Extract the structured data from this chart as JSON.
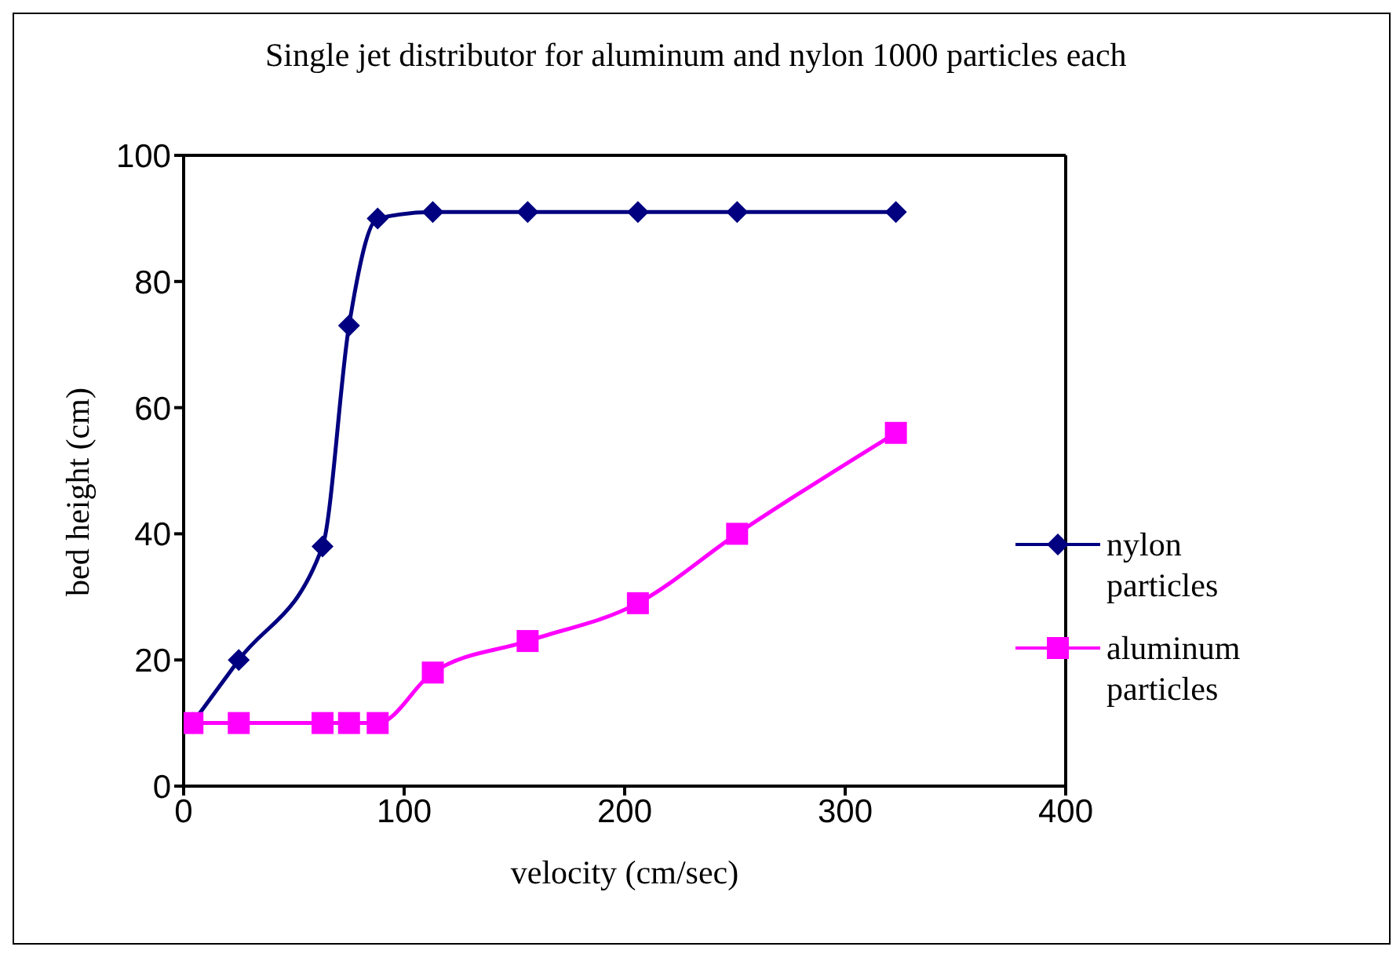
{
  "chart_data": {
    "type": "line",
    "title": "Single jet distributor for aluminum and nylon 1000 particles each",
    "xlabel": "velocity (cm/sec)",
    "ylabel": "bed height (cm)",
    "x": [
      4,
      25,
      63,
      75,
      88,
      113,
      156,
      206,
      251,
      323
    ],
    "series": [
      {
        "name": "nylon particles",
        "color": "#000080",
        "marker": "diamond",
        "values": [
          10,
          20,
          38,
          73,
          90,
          91,
          91,
          91,
          91,
          91
        ]
      },
      {
        "name": "aluminum particles",
        "color": "#ff00ff",
        "marker": "square",
        "values": [
          10,
          10,
          10,
          10,
          10,
          18,
          23,
          29,
          40,
          56
        ]
      }
    ],
    "xlim": [
      0,
      400
    ],
    "xticks": [
      0,
      100,
      200,
      300,
      400
    ],
    "ylim": [
      0,
      100
    ],
    "yticks": [
      0,
      20,
      40,
      60,
      80,
      100
    ],
    "grid": false,
    "legend": "right"
  }
}
